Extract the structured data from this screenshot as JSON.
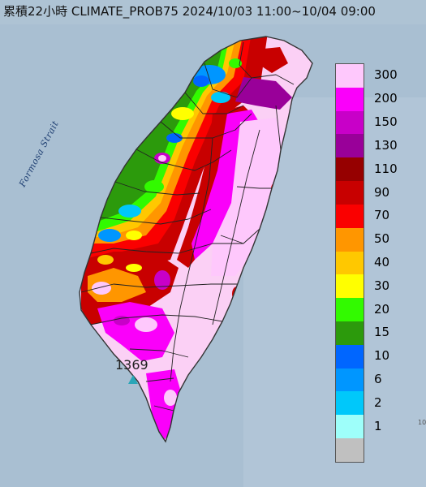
{
  "map": {
    "title": "累積22小時 CLIMATE_PROB75 2024/10/03 11:00~10/04 09:00",
    "sea_label": "Formosa Strait",
    "station": {
      "value": "1369"
    },
    "edge_marker": "10",
    "colors": {
      "sea": "#a9bfd2",
      "land_base": "#fbd0f5",
      "border": "#333333"
    }
  },
  "legend": {
    "items": [
      {
        "label": "300",
        "color": "#fec8fc"
      },
      {
        "label": "200",
        "color": "#fa00fa"
      },
      {
        "label": "150",
        "color": "#c800c8"
      },
      {
        "label": "130",
        "color": "#990099"
      },
      {
        "label": "110",
        "color": "#960000"
      },
      {
        "label": "90",
        "color": "#c80000"
      },
      {
        "label": "70",
        "color": "#fa0000"
      },
      {
        "label": "50",
        "color": "#ff9600"
      },
      {
        "label": "40",
        "color": "#ffc800"
      },
      {
        "label": "30",
        "color": "#ffff00"
      },
      {
        "label": "20",
        "color": "#32fa00"
      },
      {
        "label": "15",
        "color": "#2c9a0c"
      },
      {
        "label": "10",
        "color": "#0066ff"
      },
      {
        "label": "6",
        "color": "#0096ff"
      },
      {
        "label": "2",
        "color": "#00c8fa"
      },
      {
        "label": "1",
        "color": "#9efffa"
      },
      {
        "label": "",
        "color": "#c0c0c0"
      }
    ]
  }
}
